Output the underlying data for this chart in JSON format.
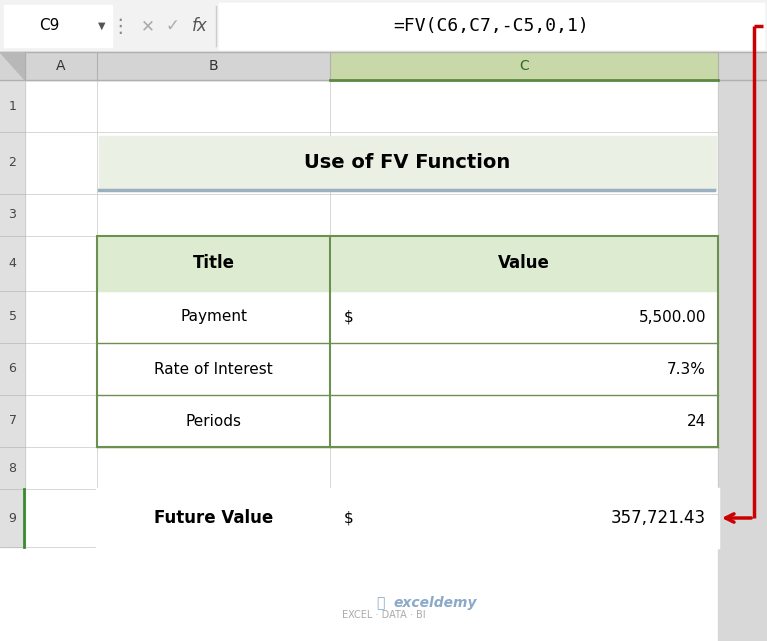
{
  "bg_color": "#d8d8d8",
  "spreadsheet_bg": "#ffffff",
  "formula_bar_text": "=FV(C6,C7,-C5,0,1)",
  "cell_ref": "C9",
  "title_text": "Use of FV Function",
  "title_bg": "#eaf0e4",
  "title_underline_color": "#9aafc0",
  "header_bg": "#ddecd0",
  "table_border": "#6b9050",
  "data_rows": [
    {
      "title": "Payment",
      "dollar": "$",
      "value": "5,500.00"
    },
    {
      "title": "Rate of Interest",
      "dollar": "",
      "value": "7.3%"
    },
    {
      "title": "Periods",
      "dollar": "",
      "value": "24"
    }
  ],
  "fv_label": "Future Value",
  "fv_dollar": "$",
  "fv_value": "357,721.43",
  "fv_box_border": "#cc0000",
  "arrow_color": "#cc0000",
  "formula_box_border": "#cc0000",
  "row_labels": [
    "1",
    "2",
    "3",
    "4",
    "5",
    "6",
    "7",
    "8",
    "9"
  ],
  "col_labels": [
    "A",
    "B",
    "C"
  ],
  "col_header_bg": "#d4d4d4",
  "col_C_header_bg": "#c8d8a8",
  "row_header_bg": "#e0e0e0",
  "formula_bar_bg": "#f2f2f2",
  "grid_color": "#c8c8c8",
  "watermark_text": "exceldemy",
  "watermark_sub": "EXCEL · DATA · BI"
}
